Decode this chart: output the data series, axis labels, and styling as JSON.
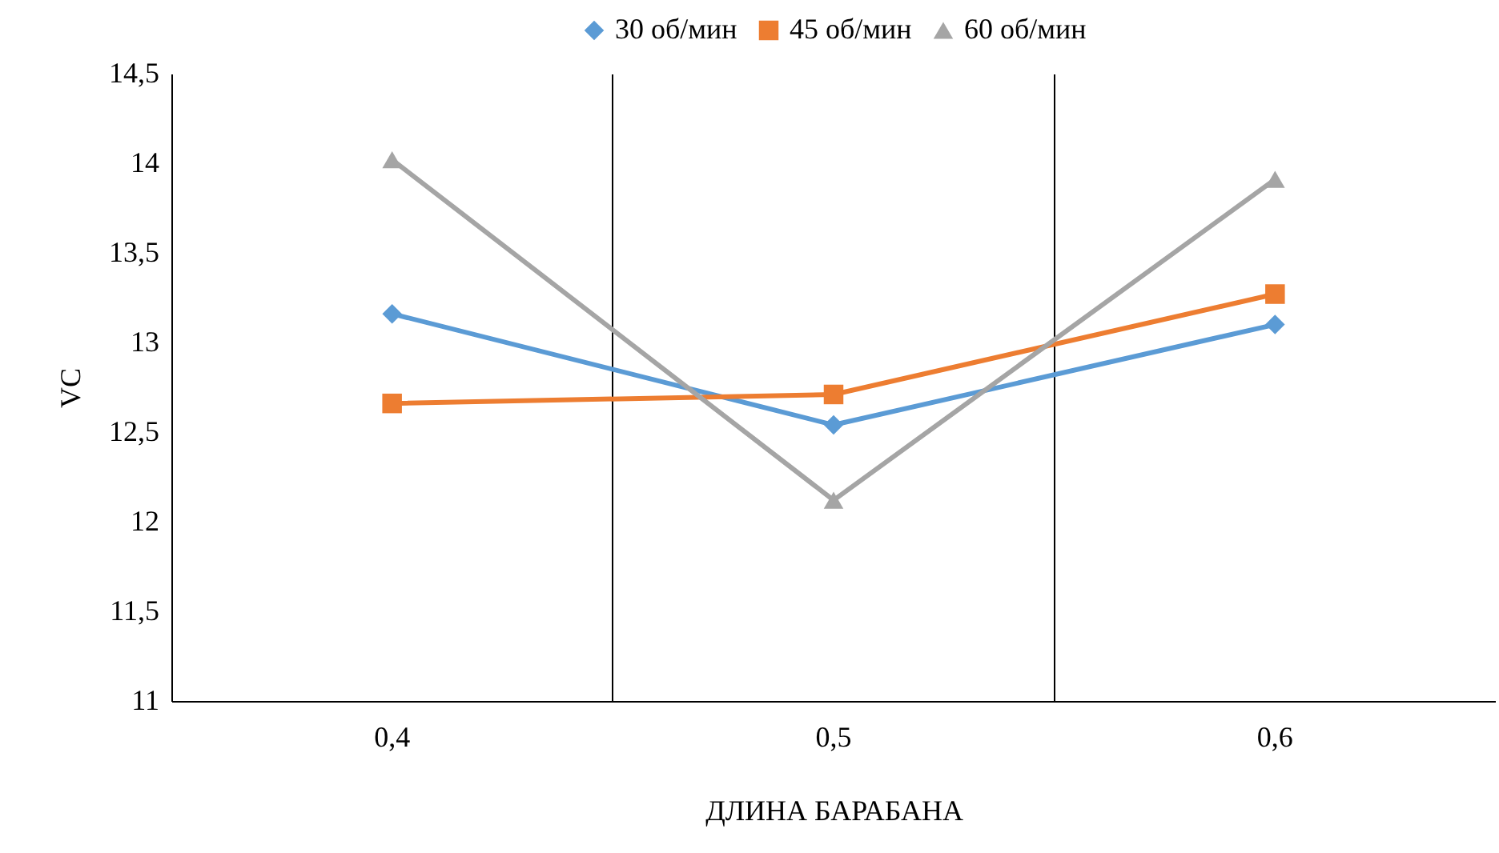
{
  "chart_data": {
    "type": "line",
    "xlabel": "ДЛИНА БАРАБАНА",
    "ylabel": "VC",
    "categories": [
      "0,4",
      "0,5",
      "0,6"
    ],
    "series": [
      {
        "name": "30 об/мин",
        "color": "#5b9bd5",
        "marker": "diamond",
        "values": [
          13.16,
          12.54,
          13.1
        ]
      },
      {
        "name": "45 об/мин",
        "color": "#ed7d31",
        "marker": "square",
        "values": [
          12.66,
          12.71,
          13.27
        ]
      },
      {
        "name": "60 об/мин",
        "color": "#a5a5a5",
        "marker": "triangle",
        "values": [
          14.02,
          12.12,
          13.91
        ]
      }
    ],
    "ylim": [
      11,
      14.5
    ],
    "yticks": [
      11,
      {
        "value": 11.5,
        "label": "11,5"
      },
      12,
      {
        "value": 12.5,
        "label": "12,5"
      },
      13,
      {
        "value": 13.5,
        "label": "13,5"
      },
      14,
      {
        "value": 14.5,
        "label": "14,5"
      }
    ],
    "grid": "x",
    "legend": "top",
    "line_style": "solid"
  }
}
